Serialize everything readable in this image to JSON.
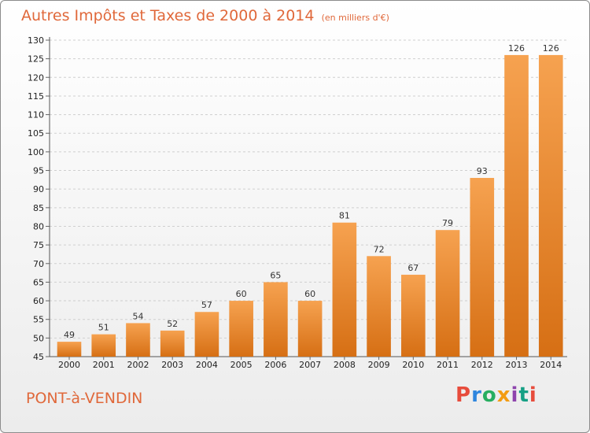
{
  "header": {
    "title": "Autres Impôts et Taxes de 2000 à 2014",
    "subtitle": "(en milliers d'€)"
  },
  "footer": {
    "town": "PONT-à-VENDIN",
    "brand": "Proxiti"
  },
  "colors": {
    "accent": "#e0683a",
    "bar_light": "#f6a250",
    "bar_dark": "#d66f14",
    "brand_letters": [
      "#e74c3c",
      "#2e86de",
      "#27ae60",
      "#f39c12",
      "#8e44ad",
      "#16a085",
      "#e74c3c"
    ]
  },
  "chart_data": {
    "type": "bar",
    "categories": [
      "2000",
      "2001",
      "2002",
      "2003",
      "2004",
      "2005",
      "2006",
      "2007",
      "2008",
      "2009",
      "2010",
      "2011",
      "2012",
      "2013",
      "2014"
    ],
    "values": [
      49,
      51,
      54,
      52,
      57,
      60,
      65,
      60,
      81,
      72,
      67,
      79,
      93,
      126,
      126
    ],
    "title": "Autres Impôts et Taxes de 2000 à 2014",
    "xlabel": "",
    "ylabel": "",
    "ylim": [
      45,
      130
    ],
    "yticks": [
      45,
      50,
      55,
      60,
      65,
      70,
      75,
      80,
      85,
      90,
      95,
      100,
      105,
      110,
      115,
      120,
      125,
      130
    ],
    "grid": true,
    "legend": "none"
  }
}
